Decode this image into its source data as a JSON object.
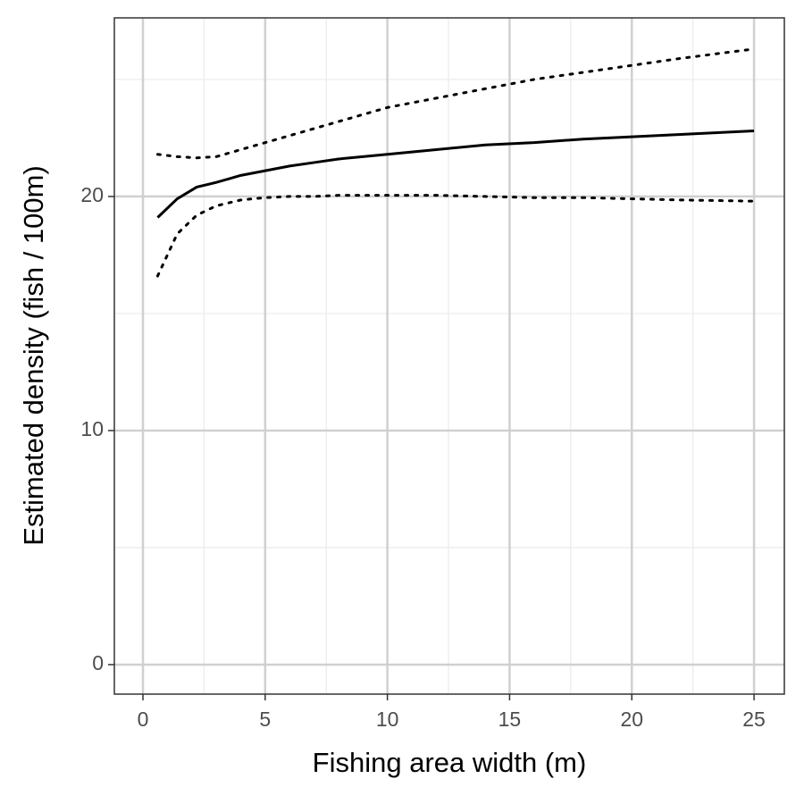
{
  "chart_data": {
    "type": "line",
    "x_label": "Fishing area width (m)",
    "y_label": "Estimated density (fish / 100m)",
    "x": [
      0.6,
      1.4,
      2.2,
      3,
      4,
      5,
      6,
      7,
      8,
      10,
      12,
      14,
      16,
      18,
      20,
      22,
      25
    ],
    "series": [
      {
        "color": "#000000",
        "style": "solid",
        "values": [
          19.1,
          19.9,
          20.4,
          20.6,
          20.9,
          21.1,
          21.3,
          21.45,
          21.6,
          21.8,
          22.0,
          22.2,
          22.3,
          22.45,
          22.55,
          22.65,
          22.8
        ]
      },
      {
        "color": "#000000",
        "style": "dotted",
        "values": [
          21.8,
          21.7,
          21.65,
          21.7,
          22.0,
          22.3,
          22.6,
          22.9,
          23.2,
          23.8,
          24.2,
          24.6,
          25.0,
          25.3,
          25.6,
          25.9,
          26.3
        ]
      },
      {
        "color": "#000000",
        "style": "dotted",
        "values": [
          16.6,
          18.4,
          19.2,
          19.6,
          19.85,
          19.95,
          20.0,
          20.0,
          20.05,
          20.05,
          20.05,
          20.0,
          19.95,
          19.95,
          19.9,
          19.85,
          19.8
        ]
      }
    ],
    "xlim": [
      -1.17,
      26.24
    ],
    "ylim": [
      -1.26,
      27.63
    ],
    "xticks": [
      0,
      5,
      10,
      15,
      20,
      25
    ],
    "yticks": [
      0,
      10,
      20
    ],
    "x_minor_ticks": [
      2.5,
      7.5,
      12.5,
      17.5,
      22.5
    ],
    "y_minor_ticks": [
      5,
      15,
      25
    ],
    "grid": true
  }
}
